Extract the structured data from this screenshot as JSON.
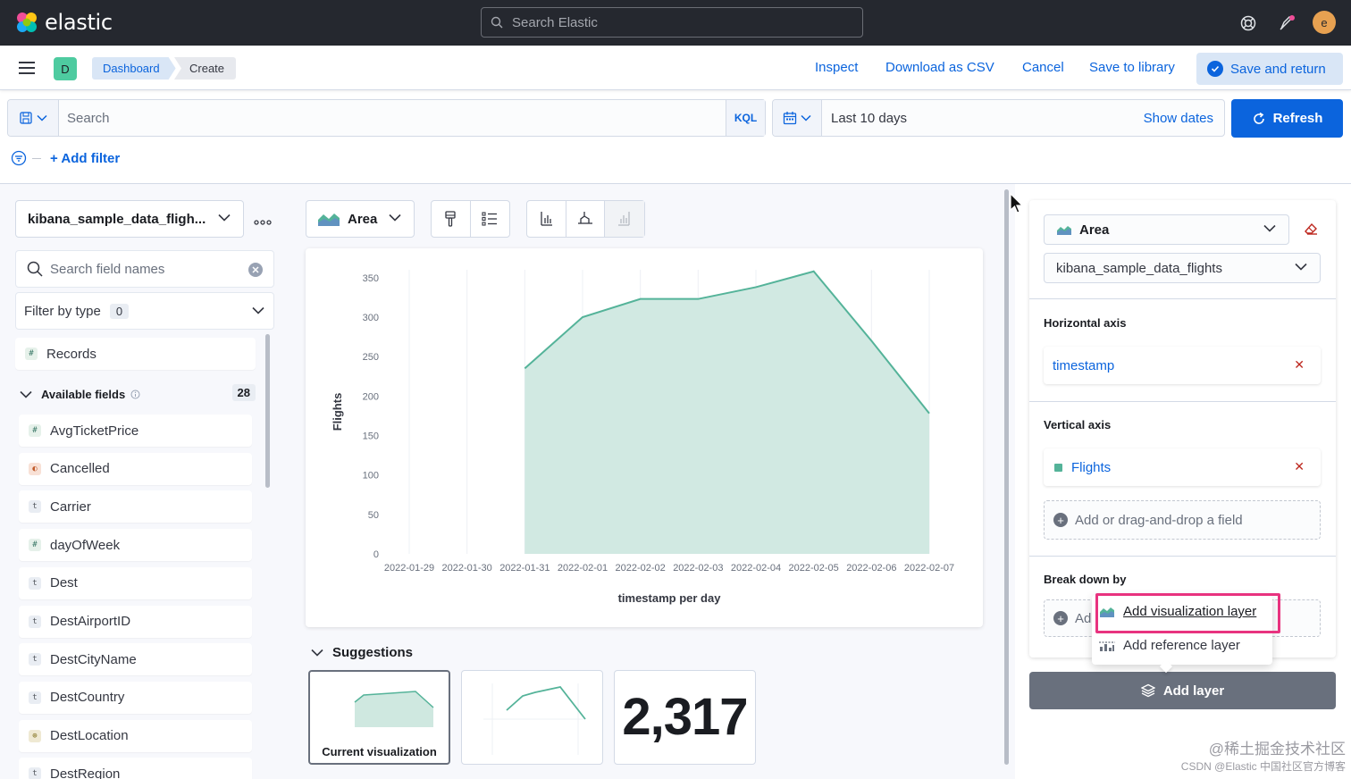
{
  "app": {
    "brand_name": "elastic",
    "search_placeholder": "Search Elastic",
    "user_initial": "e"
  },
  "header": {
    "space_initial": "D",
    "breadcrumbs": [
      "Dashboard",
      "Create"
    ]
  },
  "toolbar": {
    "inspect": "Inspect",
    "download_csv": "Download as CSV",
    "cancel": "Cancel",
    "save_library": "Save to library",
    "save_return": "Save and return"
  },
  "query_bar": {
    "placeholder": "Search",
    "kql": "KQL",
    "time_range": "Last 10 days",
    "show_dates": "Show dates",
    "refresh": "Refresh",
    "add_filter": "+ Add filter"
  },
  "data_panel": {
    "data_view": "kibana_sample_data_fligh...",
    "field_search_placeholder": "Search field names",
    "filter_by_type": "Filter by type",
    "filter_count": "0",
    "records": "Records",
    "available_fields": "Available fields",
    "available_count": "28",
    "fields": [
      {
        "name": "AvgTicketPrice",
        "type": "#"
      },
      {
        "name": "Cancelled",
        "type": "b"
      },
      {
        "name": "Carrier",
        "type": "t"
      },
      {
        "name": "dayOfWeek",
        "type": "#"
      },
      {
        "name": "Dest",
        "type": "t"
      },
      {
        "name": "DestAirportID",
        "type": "t"
      },
      {
        "name": "DestCityName",
        "type": "t"
      },
      {
        "name": "DestCountry",
        "type": "t"
      },
      {
        "name": "DestLocation",
        "type": "geo"
      },
      {
        "name": "DestRegion",
        "type": "t"
      }
    ]
  },
  "workspace": {
    "chart_type": "Area",
    "suggestions_title": "Suggestions",
    "suggestions": [
      {
        "label": "Current visualization"
      },
      {
        "label": ""
      },
      {
        "metric": "2,317"
      }
    ]
  },
  "config": {
    "layer_type": "Area",
    "data_view": "kibana_sample_data_flights",
    "horizontal_axis_title": "Horizontal axis",
    "horizontal_field": "timestamp",
    "vertical_axis_title": "Vertical axis",
    "vertical_field": "Flights",
    "add_field": "Add or drag-and-drop a field",
    "breakdown_title": "Break down by",
    "breakdown_add": "Ad",
    "add_layer": "Add layer",
    "menu_visualization_layer": "Add visualization layer",
    "menu_reference_layer": "Add reference layer"
  },
  "watermark": {
    "line1": "@稀土掘金技术社区",
    "line2": "CSDN @Elastic 中国社区官方博客"
  },
  "colors": {
    "accent": "#0b64dd",
    "area_fill": "#cfe8e0",
    "area_line": "#54b399",
    "highlight": "#e8337f"
  },
  "chart_data": {
    "type": "area",
    "x": [
      "2022-01-29",
      "2022-01-30",
      "2022-01-31",
      "2022-02-01",
      "2022-02-02",
      "2022-02-03",
      "2022-02-04",
      "2022-02-05",
      "2022-02-06",
      "2022-02-07"
    ],
    "values": [
      null,
      null,
      235,
      300,
      323,
      323,
      338,
      358,
      270,
      178
    ],
    "xlabel": "timestamp per day",
    "ylabel": "Flights",
    "yticks": [
      0,
      50,
      100,
      150,
      200,
      250,
      300,
      350
    ],
    "ylim": [
      0,
      360
    ],
    "grid": true,
    "legend": "none"
  }
}
